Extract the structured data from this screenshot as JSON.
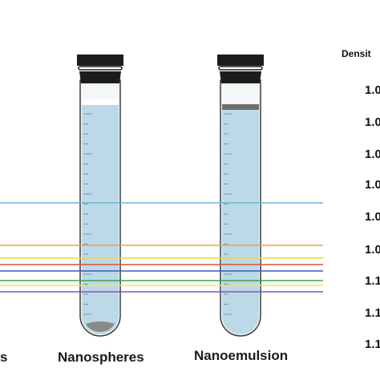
{
  "tubes": [
    {
      "label": "Nanospheres",
      "top_layer": "white",
      "bottom_layer": "gray-sediment"
    },
    {
      "label": "Nanoemulsion",
      "top_layer": "gray-band",
      "bottom_layer": "none"
    }
  ],
  "left_partial_label": "s",
  "density_scale": {
    "title": "Densit",
    "values": [
      "1.0",
      "1.0",
      "1.0",
      "1.0",
      "1.0",
      "1.0",
      "1.1",
      "1.1",
      "1.1"
    ]
  },
  "reference_lines": [
    {
      "color": "#6fb6d6"
    },
    {
      "color": "#f0a24a"
    },
    {
      "color": "#e8d84a"
    },
    {
      "color": "#d9503f"
    },
    {
      "color": "#3e58b4"
    },
    {
      "color": "#3aa64a"
    },
    {
      "color": "#f5e64a"
    },
    {
      "color": "#8c4fbf"
    }
  ],
  "colors": {
    "liquid": "#bcd9e8",
    "cap": "#1c1c1c",
    "glass": "#f4f7f9",
    "sediment": "#8a8a8a"
  }
}
